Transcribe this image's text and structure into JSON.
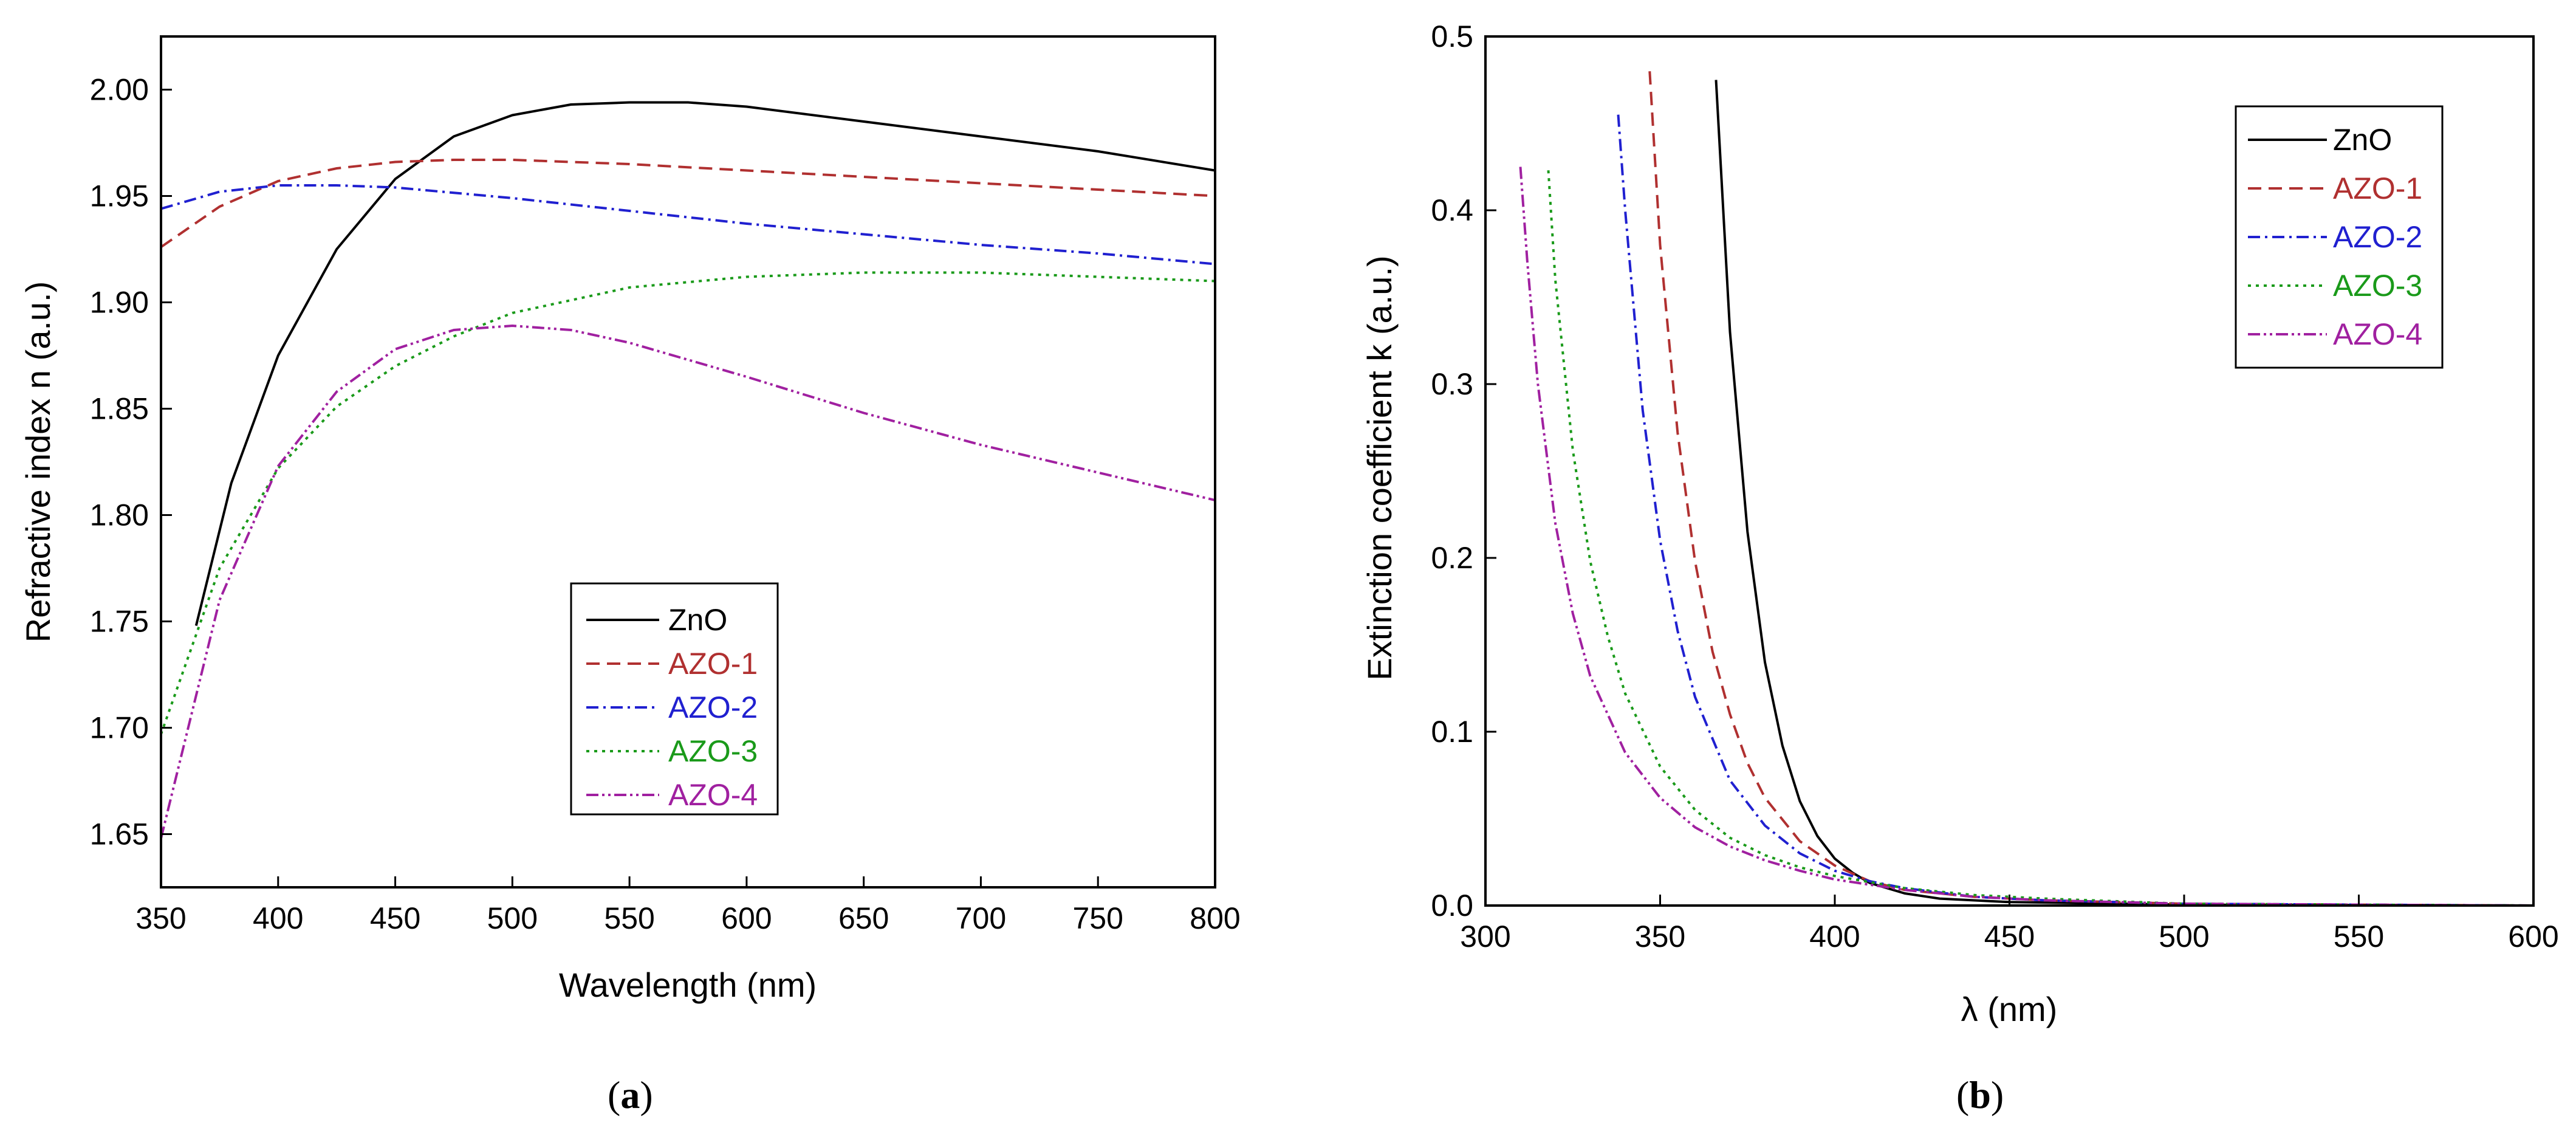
{
  "chart_data": [
    {
      "type": "line",
      "panel_label": "a",
      "title": "",
      "xlabel": "Wavelength (nm)",
      "ylabel": "Refractive index n (a.u.)",
      "xlim": [
        350,
        800
      ],
      "ylim": [
        1.625,
        2.025
      ],
      "xticks": [
        350,
        400,
        450,
        500,
        550,
        600,
        650,
        700,
        750,
        800
      ],
      "yticks": [
        1.65,
        1.7,
        1.75,
        1.8,
        1.85,
        1.9,
        1.95,
        2.0
      ],
      "xtick_labels": [
        "350",
        "400",
        "450",
        "500",
        "550",
        "600",
        "650",
        "700",
        "750",
        "800"
      ],
      "ytick_labels": [
        "1.65",
        "1.70",
        "1.75",
        "1.80",
        "1.85",
        "1.90",
        "1.95",
        "2.00"
      ],
      "legend_position": "center-bottom",
      "series": [
        {
          "name": "ZnO",
          "color": "#000000",
          "style": "solid",
          "x": [
            365,
            380,
            400,
            425,
            450,
            475,
            500,
            525,
            550,
            575,
            600,
            650,
            700,
            750,
            800
          ],
          "y": [
            1.748,
            1.815,
            1.875,
            1.925,
            1.958,
            1.978,
            1.988,
            1.993,
            1.994,
            1.994,
            1.992,
            1.985,
            1.978,
            1.971,
            1.962
          ]
        },
        {
          "name": "AZO-1",
          "color": "#b03030",
          "style": "dashed",
          "x": [
            350,
            375,
            400,
            425,
            450,
            475,
            500,
            525,
            550,
            600,
            650,
            700,
            750,
            800
          ],
          "y": [
            1.926,
            1.945,
            1.957,
            1.963,
            1.966,
            1.967,
            1.967,
            1.966,
            1.965,
            1.962,
            1.959,
            1.956,
            1.953,
            1.95
          ]
        },
        {
          "name": "AZO-2",
          "color": "#2020d0",
          "style": "dashdot",
          "x": [
            350,
            375,
            400,
            425,
            450,
            500,
            550,
            600,
            650,
            700,
            750,
            800
          ],
          "y": [
            1.944,
            1.952,
            1.955,
            1.955,
            1.954,
            1.949,
            1.943,
            1.937,
            1.932,
            1.927,
            1.923,
            1.918
          ]
        },
        {
          "name": "AZO-3",
          "color": "#1a9a1a",
          "style": "dotted",
          "x": [
            350,
            375,
            400,
            425,
            450,
            475,
            500,
            550,
            600,
            650,
            700,
            750,
            800
          ],
          "y": [
            1.697,
            1.775,
            1.822,
            1.851,
            1.87,
            1.884,
            1.895,
            1.907,
            1.912,
            1.914,
            1.914,
            1.912,
            1.91
          ]
        },
        {
          "name": "AZO-4",
          "color": "#a020a0",
          "style": "dashdotdot",
          "x": [
            350,
            375,
            400,
            425,
            450,
            475,
            500,
            525,
            550,
            600,
            650,
            700,
            750,
            800
          ],
          "y": [
            1.648,
            1.76,
            1.823,
            1.858,
            1.878,
            1.887,
            1.889,
            1.887,
            1.881,
            1.865,
            1.848,
            1.833,
            1.82,
            1.807
          ]
        }
      ]
    },
    {
      "type": "line",
      "panel_label": "b",
      "title": "",
      "xlabel": "λ (nm)",
      "ylabel": "Extinction coefficient k (a.u.)",
      "xlim": [
        300,
        600
      ],
      "ylim": [
        0.0,
        0.5
      ],
      "xticks": [
        300,
        350,
        400,
        450,
        500,
        550,
        600
      ],
      "yticks": [
        0.0,
        0.1,
        0.2,
        0.3,
        0.4,
        0.5
      ],
      "xtick_labels": [
        "300",
        "350",
        "400",
        "450",
        "500",
        "550",
        "600"
      ],
      "ytick_labels": [
        "0.0",
        "0.1",
        "0.2",
        "0.3",
        "0.4",
        "0.5"
      ],
      "legend_position": "top-right",
      "series": [
        {
          "name": "ZnO",
          "color": "#000000",
          "style": "solid",
          "x": [
            366,
            370,
            375,
            380,
            385,
            390,
            395,
            400,
            405,
            410,
            420,
            430,
            450,
            500,
            600
          ],
          "y": [
            0.475,
            0.33,
            0.215,
            0.14,
            0.092,
            0.06,
            0.04,
            0.027,
            0.019,
            0.013,
            0.007,
            0.004,
            0.002,
            0.0005,
            0.0
          ]
        },
        {
          "name": "AZO-1",
          "color": "#b03030",
          "style": "dashed",
          "x": [
            347,
            350,
            355,
            360,
            365,
            370,
            375,
            380,
            390,
            400,
            410,
            420,
            440,
            460,
            500,
            600
          ],
          "y": [
            0.48,
            0.38,
            0.272,
            0.198,
            0.146,
            0.11,
            0.082,
            0.062,
            0.037,
            0.023,
            0.014,
            0.009,
            0.005,
            0.003,
            0.001,
            0.0
          ]
        },
        {
          "name": "AZO-2",
          "color": "#2020d0",
          "style": "dashdot",
          "x": [
            338,
            340,
            345,
            350,
            355,
            360,
            370,
            380,
            390,
            400,
            410,
            420,
            440,
            460,
            500,
            600
          ],
          "y": [
            0.455,
            0.4,
            0.285,
            0.21,
            0.158,
            0.12,
            0.072,
            0.046,
            0.03,
            0.02,
            0.014,
            0.01,
            0.005,
            0.003,
            0.001,
            0.0
          ]
        },
        {
          "name": "AZO-3",
          "color": "#1a9a1a",
          "style": "dotted",
          "x": [
            318,
            320,
            325,
            330,
            335,
            340,
            350,
            360,
            370,
            380,
            390,
            400,
            420,
            440,
            460,
            500,
            600
          ],
          "y": [
            0.423,
            0.36,
            0.262,
            0.198,
            0.155,
            0.122,
            0.08,
            0.055,
            0.039,
            0.029,
            0.022,
            0.017,
            0.01,
            0.006,
            0.004,
            0.001,
            0.0
          ]
        },
        {
          "name": "AZO-4",
          "color": "#a020a0",
          "style": "dashdotdot",
          "x": [
            310,
            312,
            315,
            320,
            325,
            330,
            340,
            350,
            360,
            370,
            380,
            390,
            400,
            420,
            440,
            460,
            500,
            600
          ],
          "y": [
            0.425,
            0.37,
            0.3,
            0.22,
            0.168,
            0.132,
            0.088,
            0.062,
            0.045,
            0.034,
            0.026,
            0.02,
            0.015,
            0.009,
            0.005,
            0.003,
            0.001,
            0.0
          ]
        }
      ]
    }
  ]
}
